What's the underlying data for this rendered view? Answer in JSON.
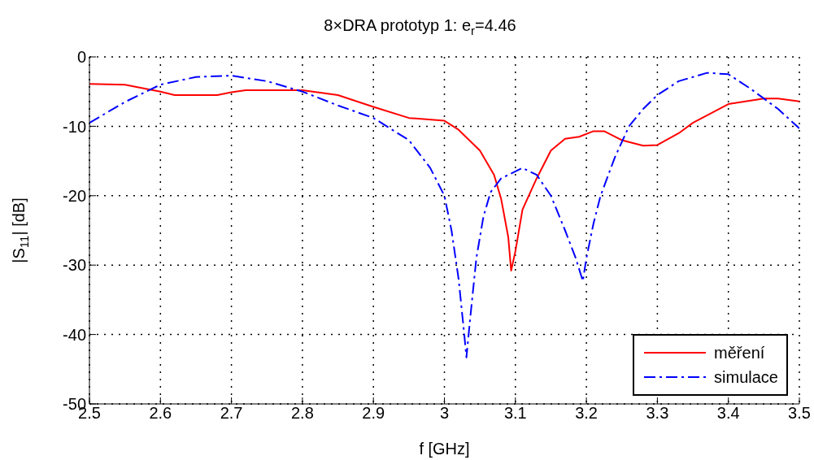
{
  "chart_data": {
    "type": "line",
    "title": "8×DRA prototyp 1: e$_{r}$=4.46",
    "xlabel": "f [GHz]",
    "ylabel": "|S$_{11}$| [dB]",
    "xlim": [
      2.5,
      3.5
    ],
    "xticks": [
      2.5,
      2.6,
      2.7,
      2.8,
      2.9,
      3,
      3.1,
      3.2,
      3.3,
      3.4,
      3.5
    ],
    "ylim": [
      -50,
      0
    ],
    "yticks": [
      -50,
      -40,
      -30,
      -20,
      -10,
      0
    ],
    "grid": true,
    "legend": "bottom right",
    "series": [
      {
        "name": "měření",
        "color": "#ff0000",
        "line_style": "solid",
        "x": [
          2.5,
          2.55,
          2.6,
          2.62,
          2.68,
          2.7,
          2.72,
          2.8,
          2.85,
          2.9,
          2.95,
          3.0,
          3.02,
          3.05,
          3.07,
          3.08,
          3.09,
          3.094,
          3.1,
          3.11,
          3.13,
          3.15,
          3.17,
          3.19,
          3.21,
          3.225,
          3.25,
          3.28,
          3.3,
          3.33,
          3.35,
          3.4,
          3.45,
          3.47,
          3.5
        ],
        "values": [
          -3.9,
          -4.0,
          -5,
          -5.5,
          -5.5,
          -5.1,
          -4.8,
          -4.8,
          -5.5,
          -7.2,
          -8.8,
          -9.2,
          -10.5,
          -13.5,
          -17,
          -20.5,
          -26,
          -30.8,
          -28,
          -22,
          -17.5,
          -13.5,
          -11.8,
          -11.5,
          -10.7,
          -10.7,
          -12,
          -12.8,
          -12.7,
          -11,
          -9.5,
          -6.8,
          -6,
          -6,
          -6.4
        ]
      },
      {
        "name": "simulace",
        "color": "#0000ff",
        "line_style": "dashed",
        "x": [
          2.5,
          2.55,
          2.6,
          2.65,
          2.7,
          2.75,
          2.8,
          2.85,
          2.9,
          2.95,
          2.98,
          3.0,
          3.01,
          3.02,
          3.028,
          3.031,
          3.036,
          3.045,
          3.055,
          3.065,
          3.08,
          3.11,
          3.13,
          3.15,
          3.17,
          3.185,
          3.195,
          3.2,
          3.21,
          3.22,
          3.24,
          3.26,
          3.28,
          3.3,
          3.33,
          3.37,
          3.4,
          3.43,
          3.47,
          3.5
        ],
        "values": [
          -9.5,
          -6.5,
          -4.0,
          -2.9,
          -2.7,
          -3.5,
          -5,
          -7,
          -8.8,
          -12,
          -16,
          -20,
          -25,
          -32,
          -40,
          -43.3,
          -38,
          -29,
          -23,
          -19.5,
          -17.5,
          -16,
          -17,
          -20,
          -25,
          -29,
          -32.3,
          -29,
          -24,
          -20,
          -14.5,
          -10,
          -7.5,
          -5.5,
          -3.5,
          -2.3,
          -2.5,
          -4.5,
          -7.5,
          -10.3
        ]
      }
    ]
  }
}
